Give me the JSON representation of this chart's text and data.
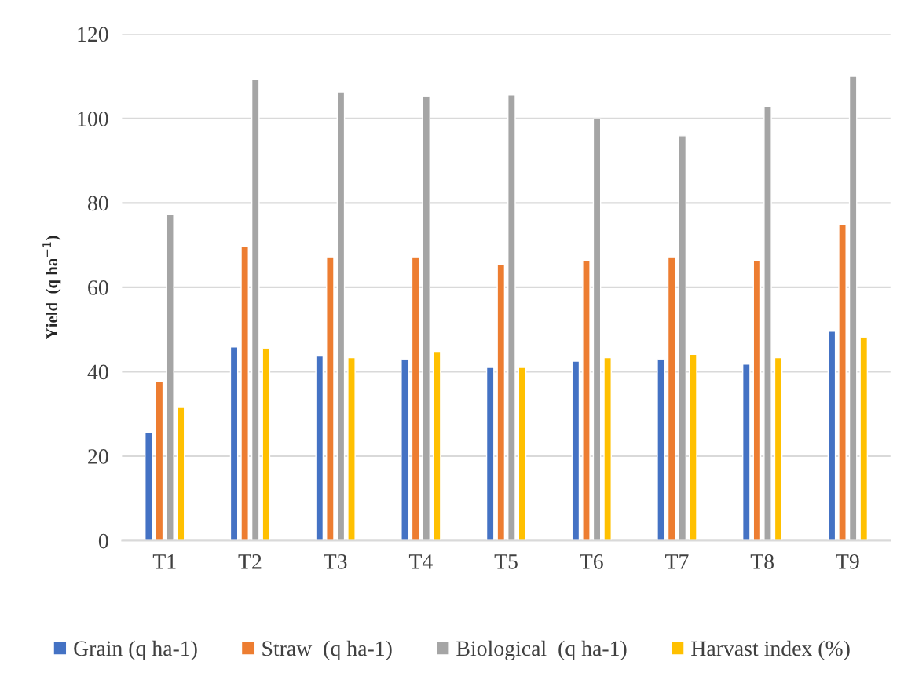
{
  "chart_data": {
    "type": "bar",
    "ylabel": "Yield  (q ha$^{−1}$)",
    "categories": [
      "T1",
      "T2",
      "T3",
      "T4",
      "T5",
      "T6",
      "T7",
      "T8",
      "T9"
    ],
    "series": [
      {
        "name": "Grain (q ha-1)",
        "color": "#4472c4",
        "values": [
          25.7,
          45.9,
          43.7,
          42.9,
          41.0,
          42.5,
          42.9,
          41.8,
          49.6
        ]
      },
      {
        "name": "Straw  (q ha-1)",
        "color": "#ed7d31",
        "values": [
          37.7,
          69.8,
          67.2,
          67.2,
          65.3,
          66.4,
          67.2,
          66.4,
          75.0
        ]
      },
      {
        "name": "Biological  (q ha-1)",
        "color": "#a5a5a5",
        "values": [
          77.2,
          109.2,
          106.3,
          105.2,
          105.6,
          99.9,
          95.9,
          102.9,
          110.0
        ]
      },
      {
        "name": "Harvast index (%)",
        "color": "#ffc000",
        "values": [
          31.7,
          45.5,
          43.3,
          44.8,
          41.0,
          43.3,
          44.1,
          43.3,
          48.1
        ]
      }
    ],
    "ylim": [
      0,
      120
    ],
    "yticks": [
      0,
      20,
      40,
      60,
      80,
      100,
      120
    ],
    "grid": "y",
    "legend": "bottom"
  }
}
